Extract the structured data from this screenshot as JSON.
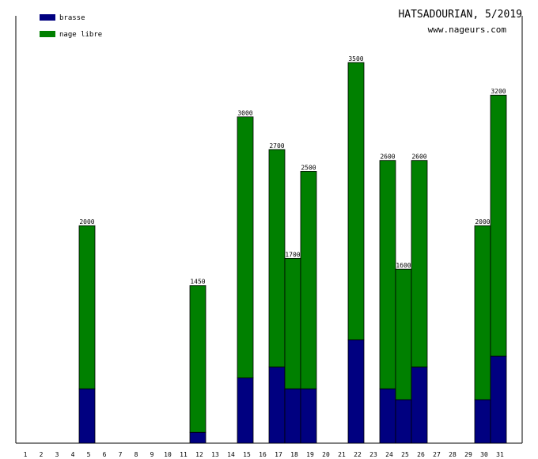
{
  "header": {
    "title": "HATSADOURIAN, 5/2019",
    "url": "www.nageurs.com"
  },
  "legend": {
    "items": [
      {
        "label": "brasse",
        "color": "#000080"
      },
      {
        "label": "nage libre",
        "color": "#008000"
      }
    ]
  },
  "chart_data": {
    "type": "bar",
    "stacked": true,
    "categories": [
      "1",
      "2",
      "3",
      "4",
      "5",
      "6",
      "7",
      "8",
      "9",
      "10",
      "11",
      "12",
      "13",
      "14",
      "15",
      "16",
      "17",
      "18",
      "19",
      "20",
      "21",
      "22",
      "23",
      "24",
      "25",
      "26",
      "27",
      "28",
      "29",
      "30",
      "31"
    ],
    "series": [
      {
        "name": "brasse",
        "color": "#000080",
        "values": [
          0,
          0,
          0,
          0,
          500,
          0,
          0,
          0,
          0,
          0,
          0,
          100,
          0,
          0,
          600,
          0,
          700,
          500,
          500,
          0,
          0,
          950,
          0,
          500,
          400,
          700,
          0,
          0,
          0,
          400,
          800
        ]
      },
      {
        "name": "nage libre",
        "color": "#008000",
        "values": [
          0,
          0,
          0,
          0,
          1500,
          0,
          0,
          0,
          0,
          0,
          0,
          1350,
          0,
          0,
          2400,
          0,
          2000,
          1200,
          2000,
          0,
          0,
          2550,
          0,
          2100,
          1200,
          1900,
          0,
          0,
          0,
          1600,
          2400
        ]
      }
    ],
    "totals": [
      null,
      null,
      null,
      null,
      "2000",
      null,
      null,
      null,
      null,
      null,
      null,
      "1450",
      null,
      null,
      "3000",
      null,
      "2700",
      "1700",
      "2500",
      null,
      null,
      "3500",
      null,
      "2600",
      "1600",
      "2600",
      null,
      null,
      null,
      "2000",
      "3200"
    ],
    "ylim": [
      0,
      3500
    ],
    "legend_position": "top-left",
    "grid": false
  }
}
